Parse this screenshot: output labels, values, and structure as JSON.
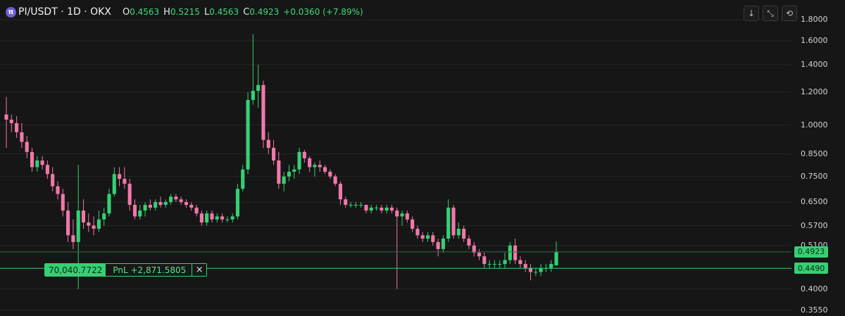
{
  "header": {
    "symbol": "PI/USDT · 1D · OKX",
    "logo_char": "π",
    "open_label": "O",
    "open_value": "0.4563",
    "high_label": "H",
    "high_value": "0.5215",
    "low_label": "L",
    "low_value": "0.4563",
    "close_label": "C",
    "close_value": "0.4923",
    "change": "+0.0360 (+7.89%)"
  },
  "toolbar": {
    "download_icon": "↓",
    "collapse_icon": "⤡",
    "refresh_icon": "⟲"
  },
  "position": {
    "quantity": "70,040.7722",
    "pnl": "PnL +2,871.5805",
    "close_icon": "×"
  },
  "price_axis": {
    "ticks": [
      "1.8000",
      "1.6000",
      "1.4000",
      "1.2000",
      "1.0000",
      "0.8500",
      "0.7500",
      "0.6500",
      "0.5700",
      "0.5100",
      "0.4000",
      "0.3550"
    ],
    "last_price_label": "0.4923",
    "entry_price_label": "0.4490"
  },
  "colors": {
    "background": "#161616",
    "up": "#35d073",
    "down": "#f178a8",
    "grid": "#262626",
    "axis_text": "#d4d4d4"
  },
  "chart_data": {
    "type": "candlestick",
    "title": "PI/USDT · 1D · OKX",
    "y_scale": "log",
    "ylim": [
      0.355,
      1.8
    ],
    "last_price": 0.4923,
    "entry_price": 0.449,
    "series": [
      {
        "candles": [
          [
            1.06,
            1.17,
            0.88,
            1.03
          ],
          [
            1.03,
            1.06,
            0.96,
            1.01
          ],
          [
            1.01,
            1.05,
            0.93,
            0.96
          ],
          [
            0.96,
            1.01,
            0.88,
            0.91
          ],
          [
            0.91,
            0.94,
            0.83,
            0.86
          ],
          [
            0.86,
            0.88,
            0.77,
            0.79
          ],
          [
            0.79,
            0.84,
            0.77,
            0.82
          ],
          [
            0.82,
            0.84,
            0.78,
            0.8
          ],
          [
            0.8,
            0.82,
            0.74,
            0.76
          ],
          [
            0.76,
            0.79,
            0.69,
            0.71
          ],
          [
            0.71,
            0.73,
            0.66,
            0.68
          ],
          [
            0.68,
            0.7,
            0.6,
            0.62
          ],
          [
            0.62,
            0.65,
            0.52,
            0.54
          ],
          [
            0.54,
            0.59,
            0.5,
            0.52
          ],
          [
            0.52,
            0.8,
            0.4,
            0.62
          ],
          [
            0.62,
            0.66,
            0.56,
            0.58
          ],
          [
            0.58,
            0.61,
            0.55,
            0.57
          ],
          [
            0.57,
            0.6,
            0.54,
            0.56
          ],
          [
            0.56,
            0.62,
            0.55,
            0.59
          ],
          [
            0.59,
            0.63,
            0.57,
            0.61
          ],
          [
            0.61,
            0.7,
            0.6,
            0.68
          ],
          [
            0.68,
            0.79,
            0.67,
            0.76
          ],
          [
            0.76,
            0.79,
            0.71,
            0.74
          ],
          [
            0.74,
            0.79,
            0.7,
            0.72
          ],
          [
            0.72,
            0.74,
            0.62,
            0.64
          ],
          [
            0.64,
            0.66,
            0.59,
            0.6
          ],
          [
            0.6,
            0.64,
            0.59,
            0.62
          ],
          [
            0.62,
            0.65,
            0.6,
            0.64
          ],
          [
            0.64,
            0.66,
            0.62,
            0.63
          ],
          [
            0.63,
            0.66,
            0.62,
            0.65
          ],
          [
            0.65,
            0.67,
            0.63,
            0.64
          ],
          [
            0.64,
            0.66,
            0.63,
            0.65
          ],
          [
            0.65,
            0.68,
            0.64,
            0.67
          ],
          [
            0.67,
            0.68,
            0.65,
            0.66
          ],
          [
            0.66,
            0.67,
            0.64,
            0.65
          ],
          [
            0.65,
            0.66,
            0.63,
            0.64
          ],
          [
            0.64,
            0.65,
            0.62,
            0.63
          ],
          [
            0.63,
            0.64,
            0.6,
            0.61
          ],
          [
            0.61,
            0.62,
            0.57,
            0.58
          ],
          [
            0.58,
            0.62,
            0.57,
            0.61
          ],
          [
            0.61,
            0.62,
            0.58,
            0.59
          ],
          [
            0.59,
            0.61,
            0.58,
            0.6
          ],
          [
            0.6,
            0.61,
            0.58,
            0.59
          ],
          [
            0.59,
            0.6,
            0.58,
            0.59
          ],
          [
            0.59,
            0.61,
            0.58,
            0.6
          ],
          [
            0.6,
            0.72,
            0.59,
            0.7
          ],
          [
            0.7,
            0.8,
            0.69,
            0.78
          ],
          [
            0.78,
            1.2,
            0.76,
            1.15
          ],
          [
            1.15,
            1.66,
            1.12,
            1.21
          ],
          [
            1.21,
            1.4,
            1.1,
            1.25
          ],
          [
            1.25,
            1.28,
            0.88,
            0.92
          ],
          [
            0.92,
            0.96,
            0.85,
            0.88
          ],
          [
            0.88,
            0.92,
            0.8,
            0.82
          ],
          [
            0.82,
            0.86,
            0.7,
            0.72
          ],
          [
            0.72,
            0.77,
            0.69,
            0.75
          ],
          [
            0.75,
            0.8,
            0.73,
            0.77
          ],
          [
            0.77,
            0.8,
            0.74,
            0.78
          ],
          [
            0.78,
            0.88,
            0.76,
            0.86
          ],
          [
            0.86,
            0.87,
            0.81,
            0.83
          ],
          [
            0.83,
            0.84,
            0.77,
            0.79
          ],
          [
            0.79,
            0.81,
            0.75,
            0.8
          ],
          [
            0.8,
            0.82,
            0.77,
            0.79
          ],
          [
            0.79,
            0.8,
            0.76,
            0.77
          ],
          [
            0.77,
            0.78,
            0.74,
            0.75
          ],
          [
            0.75,
            0.76,
            0.71,
            0.72
          ],
          [
            0.72,
            0.73,
            0.64,
            0.66
          ],
          [
            0.66,
            0.67,
            0.63,
            0.64
          ],
          [
            0.64,
            0.65,
            0.63,
            0.64
          ],
          [
            0.64,
            0.65,
            0.63,
            0.64
          ],
          [
            0.64,
            0.65,
            0.63,
            0.64
          ],
          [
            0.64,
            0.64,
            0.61,
            0.62
          ],
          [
            0.62,
            0.64,
            0.61,
            0.63
          ],
          [
            0.63,
            0.64,
            0.62,
            0.63
          ],
          [
            0.63,
            0.64,
            0.61,
            0.62
          ],
          [
            0.62,
            0.64,
            0.61,
            0.63
          ],
          [
            0.63,
            0.64,
            0.61,
            0.62
          ],
          [
            0.62,
            0.63,
            0.4,
            0.6
          ],
          [
            0.6,
            0.62,
            0.57,
            0.61
          ],
          [
            0.61,
            0.62,
            0.58,
            0.59
          ],
          [
            0.59,
            0.6,
            0.55,
            0.56
          ],
          [
            0.56,
            0.57,
            0.53,
            0.54
          ],
          [
            0.54,
            0.55,
            0.52,
            0.53
          ],
          [
            0.53,
            0.55,
            0.52,
            0.54
          ],
          [
            0.54,
            0.55,
            0.51,
            0.52
          ],
          [
            0.52,
            0.53,
            0.48,
            0.5
          ],
          [
            0.5,
            0.54,
            0.49,
            0.53
          ],
          [
            0.53,
            0.66,
            0.52,
            0.63
          ],
          [
            0.63,
            0.64,
            0.53,
            0.54
          ],
          [
            0.54,
            0.58,
            0.53,
            0.56
          ],
          [
            0.56,
            0.57,
            0.52,
            0.53
          ],
          [
            0.53,
            0.54,
            0.5,
            0.51
          ],
          [
            0.51,
            0.52,
            0.48,
            0.49
          ],
          [
            0.49,
            0.5,
            0.47,
            0.48
          ],
          [
            0.48,
            0.49,
            0.45,
            0.46
          ],
          [
            0.46,
            0.47,
            0.45,
            0.46
          ],
          [
            0.46,
            0.47,
            0.45,
            0.46
          ],
          [
            0.46,
            0.47,
            0.45,
            0.46
          ],
          [
            0.46,
            0.49,
            0.45,
            0.47
          ],
          [
            0.47,
            0.52,
            0.46,
            0.51
          ],
          [
            0.51,
            0.53,
            0.46,
            0.47
          ],
          [
            0.47,
            0.48,
            0.45,
            0.46
          ],
          [
            0.46,
            0.47,
            0.44,
            0.45
          ],
          [
            0.45,
            0.46,
            0.42,
            0.44
          ],
          [
            0.44,
            0.45,
            0.43,
            0.44
          ],
          [
            0.44,
            0.46,
            0.43,
            0.45
          ],
          [
            0.45,
            0.46,
            0.44,
            0.45
          ],
          [
            0.45,
            0.47,
            0.44,
            0.46
          ],
          [
            0.4563,
            0.5215,
            0.4563,
            0.4923
          ]
        ]
      }
    ]
  }
}
